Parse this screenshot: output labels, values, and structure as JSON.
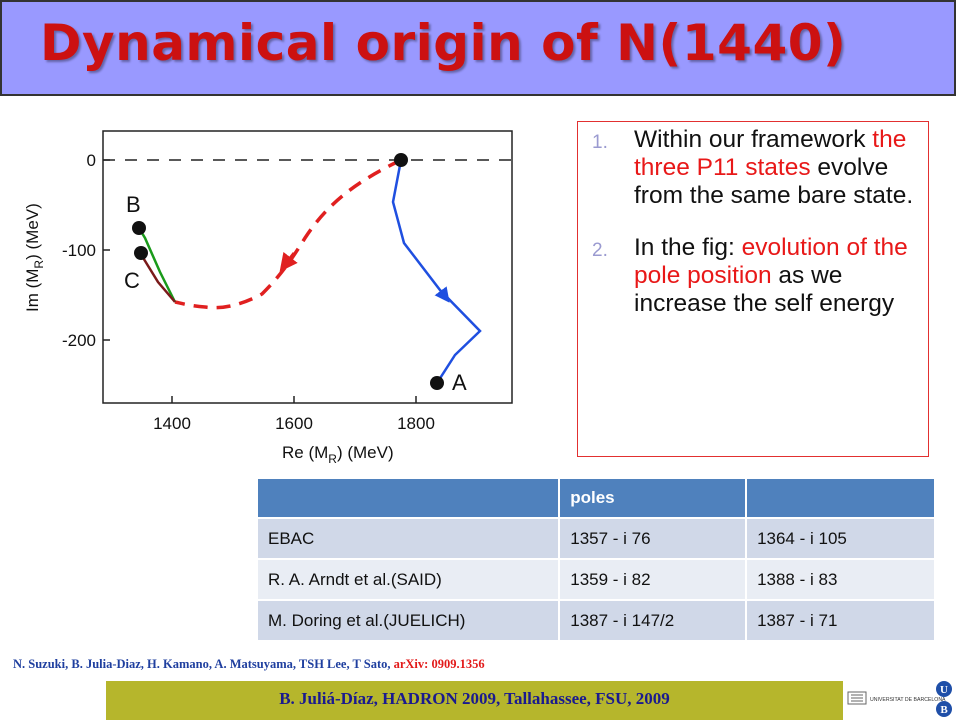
{
  "title": "Dynamical origin of N(1440)",
  "plot": {
    "xlabel_main": "Re (M",
    "xlabel_sub": "R",
    "xlabel_unit": ")   (MeV)",
    "ylabel_main": "Im (M",
    "ylabel_sub": "R",
    "ylabel_unit": ")   (MeV)",
    "xticks": [
      "1400",
      "1600",
      "1800"
    ],
    "yticks": [
      "0",
      "-100",
      "-200"
    ],
    "point_labels": {
      "A": "A",
      "B": "B",
      "C": "C"
    }
  },
  "notes": {
    "items": [
      {
        "num": "1.",
        "pre": "Within our framework ",
        "highlight": "the three P11 states",
        "post": " evolve from the same bare state."
      },
      {
        "num": "2.",
        "pre": "In the fig: ",
        "highlight": "evolution of the pole position",
        "post": " as we increase the self energy"
      }
    ]
  },
  "table": {
    "header": [
      "",
      "poles",
      ""
    ],
    "rows": [
      [
        "EBAC",
        "1357 - i 76",
        "1364 - i 105"
      ],
      [
        "R. A. Arndt et al.(SAID)",
        "1359 - i 82",
        "1388 - i 83"
      ],
      [
        "M. Doring et al.(JUELICH)",
        "1387 - i 147/2",
        "1387 - i 71"
      ]
    ]
  },
  "citation": {
    "authors": "N. Suzuki, B. Julia-Diaz, H. Kamano,  A. Matsuyama, TSH Lee, T Sato, ",
    "arxiv": "arXiv: 0909.1356"
  },
  "footer": "B. Juliá-Díaz, HADRON 2009, Tallahassee, FSU, 2009",
  "logo": {
    "line1": "UNIVERSITAT DE BARCELONA",
    "letters": [
      "U",
      "B"
    ]
  },
  "colors": {
    "title": "#cc1111",
    "title_bar": "#9999ff",
    "highlight": "#e81818",
    "footer_bar": "#b6b62c",
    "table_header": "#4f81bd",
    "blue_curve": "#1f4fe0",
    "red_curve": "#e02020",
    "green_curve": "#1a9a1a"
  },
  "chart_data": {
    "type": "line",
    "xlabel": "Re (MR)   (MeV)",
    "ylabel": "Im (MR)   (MeV)",
    "xlim": [
      1300,
      1950
    ],
    "ylim": [
      -280,
      20
    ],
    "xticks": [
      1400,
      1600,
      1800
    ],
    "yticks": [
      0,
      -100,
      -200
    ],
    "reference_line": {
      "y": 0,
      "style": "dashed"
    },
    "series": [
      {
        "color": "blue",
        "style": "solid",
        "x": [
          1757,
          1745,
          1770,
          1830,
          1878,
          1850,
          1820
        ],
        "y": [
          0,
          -55,
          -110,
          -180,
          -240,
          -270,
          -290
        ]
      },
      {
        "color": "red",
        "style": "dashed",
        "x": [
          1757,
          1700,
          1620,
          1550,
          1510,
          1470,
          1440,
          1410
        ],
        "y": [
          0,
          -35,
          -100,
          -160,
          -190,
          -210,
          -212,
          -195
        ]
      },
      {
        "color": "green",
        "style": "solid",
        "x": [
          1410,
          1385,
          1360
        ],
        "y": [
          -195,
          -140,
          -95
        ]
      },
      {
        "color": "darkred",
        "style": "solid",
        "x": [
          1410,
          1375,
          1358
        ],
        "y": [
          -195,
          -155,
          -120
        ]
      }
    ],
    "points": [
      {
        "label": "",
        "x": 1757,
        "y": 0
      },
      {
        "label": "A",
        "x": 1810,
        "y": -250
      },
      {
        "label": "B",
        "x": 1348,
        "y": -75
      },
      {
        "label": "C",
        "x": 1350,
        "y": -103
      }
    ]
  }
}
